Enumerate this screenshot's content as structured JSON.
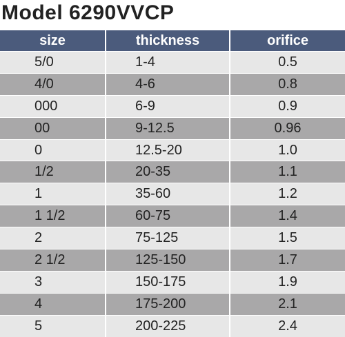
{
  "header": {
    "title": "Model 6290VVCP"
  },
  "table": {
    "columns": [
      "size",
      "thickness",
      "orifice"
    ],
    "rows": [
      [
        "5/0",
        "1-4",
        "0.5"
      ],
      [
        "4/0",
        "4-6",
        "0.8"
      ],
      [
        "000",
        "6-9",
        "0.9"
      ],
      [
        "00",
        "9-12.5",
        "0.96"
      ],
      [
        "0",
        "12.5-20",
        "1.0"
      ],
      [
        "1/2",
        "20-35",
        "1.1"
      ],
      [
        "1",
        "35-60",
        "1.2"
      ],
      [
        "1 1/2",
        "60-75",
        "1.4"
      ],
      [
        "2",
        "75-125",
        "1.5"
      ],
      [
        "2 1/2",
        "125-150",
        "1.7"
      ],
      [
        "3",
        "150-175",
        "1.9"
      ],
      [
        "4",
        "175-200",
        "2.1"
      ],
      [
        "5",
        "200-225",
        "2.4"
      ]
    ]
  }
}
